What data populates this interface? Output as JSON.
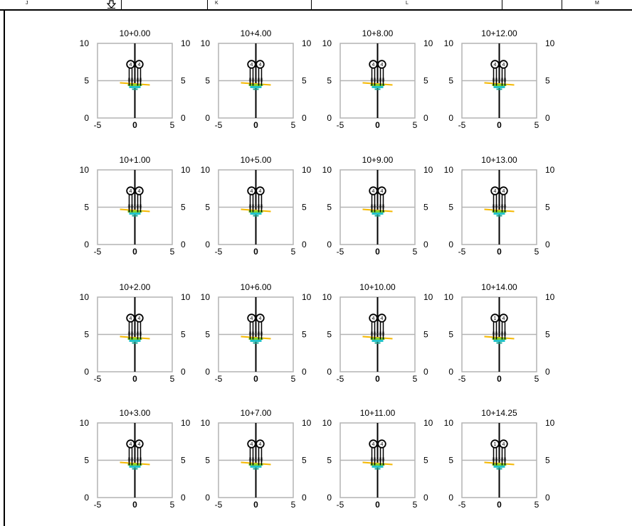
{
  "columns": [
    "J",
    "K",
    "L",
    "M"
  ],
  "marker_icon": "down-arrow-icon",
  "panels": [
    {
      "title": "10+0.00",
      "circle_labels": [
        "4",
        "4"
      ]
    },
    {
      "title": "10+4.00",
      "circle_labels": [
        "4",
        "4"
      ]
    },
    {
      "title": "10+8.00",
      "circle_labels": [
        "4",
        "4"
      ]
    },
    {
      "title": "10+12.00",
      "circle_labels": [
        "4",
        "4"
      ]
    },
    {
      "title": "10+1.00",
      "circle_labels": [
        "4",
        "4"
      ]
    },
    {
      "title": "10+5.00",
      "circle_labels": [
        "4",
        "4"
      ]
    },
    {
      "title": "10+9.00",
      "circle_labels": [
        "4",
        "4"
      ]
    },
    {
      "title": "10+13.00",
      "circle_labels": [
        "4",
        "4"
      ]
    },
    {
      "title": "10+2.00",
      "circle_labels": [
        "4",
        "4"
      ]
    },
    {
      "title": "10+6.00",
      "circle_labels": [
        "4",
        "4"
      ]
    },
    {
      "title": "10+10.00",
      "circle_labels": [
        "4",
        "4"
      ]
    },
    {
      "title": "10+14.00",
      "circle_labels": [
        "1",
        "4"
      ]
    },
    {
      "title": "10+3.00",
      "circle_labels": [
        "4",
        "4"
      ]
    },
    {
      "title": "10+7.00",
      "circle_labels": [
        "4",
        "4"
      ]
    },
    {
      "title": "10+11.00",
      "circle_labels": [
        "4",
        "4"
      ]
    },
    {
      "title": "10+14.25",
      "circle_labels": [
        "1",
        "4"
      ]
    }
  ],
  "axes": {
    "x_ticks": [
      "-5",
      "0",
      "5"
    ],
    "y_ticks_left": [
      "10",
      "5",
      "0"
    ],
    "y_ticks_right": [
      "10",
      "5",
      "0"
    ],
    "xlim": [
      -5,
      5
    ],
    "ylim": [
      0,
      10
    ]
  },
  "colors": {
    "grid": "#b3b3b3",
    "axis_line": "#000000",
    "surface": "#f5b800",
    "layer_cyan": "#22c3c9",
    "layer_green": "#7fd12e",
    "layer_teal": "#1aa38f"
  }
}
